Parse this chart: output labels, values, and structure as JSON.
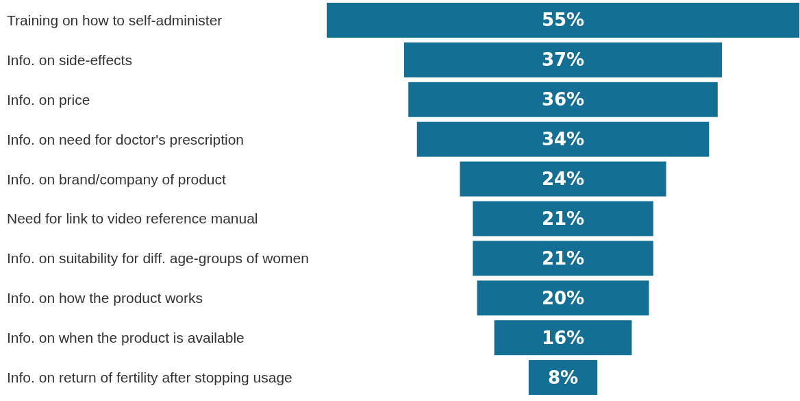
{
  "chart_data": {
    "type": "other",
    "categories": [
      "Training on how to self-administer",
      "Info. on side-effects",
      "Info. on price",
      "Info. on need for doctor's prescription",
      "Info. on brand/company of product",
      "Need for link to video reference manual",
      "Info. on suitability for diff. age-groups of women",
      "Info. on how the product works",
      "Info. on when the product is available",
      "Info. on return of fertility after stopping usage"
    ],
    "values": [
      55,
      37,
      36,
      34,
      24,
      21,
      21,
      20,
      16,
      8
    ],
    "value_labels": [
      "55%",
      "37%",
      "36%",
      "34%",
      "24%",
      "21%",
      "21%",
      "20%",
      "16%",
      "8%"
    ],
    "color": "#136f94"
  }
}
